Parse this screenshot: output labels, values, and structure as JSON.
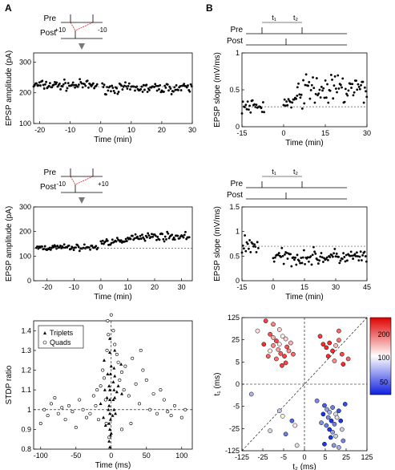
{
  "panel_labels": {
    "a": "A",
    "b": "B"
  },
  "chart_data": [
    {
      "id": "A1",
      "type": "scatter",
      "ylabel": "EPSP amplitude (pA)",
      "xlabel": "Time (min)",
      "xlim": [
        -22,
        30
      ],
      "ylim": [
        100,
        330
      ],
      "xticks": [
        -20,
        -10,
        0,
        10,
        20,
        30
      ],
      "yticks": [
        100,
        200,
        300
      ],
      "baseline": 220,
      "inset": {
        "pre": "Pre",
        "post": "Post",
        "left_value": "+10",
        "right_value": "-10"
      },
      "segments": [
        {
          "x_range": [
            -22,
            -1
          ],
          "mean": 225,
          "spread": 18
        },
        {
          "x_range": [
            0.5,
            30
          ],
          "mean": 215,
          "spread": 18
        }
      ]
    },
    {
      "id": "A2",
      "type": "scatter",
      "ylabel": "EPSP amplitude (pA)",
      "xlabel": "Time (min)",
      "xlim": [
        -25,
        34
      ],
      "ylim": [
        0,
        300
      ],
      "xticks": [
        -20,
        -10,
        0,
        10,
        20,
        30
      ],
      "yticks": [
        0,
        100,
        200,
        300
      ],
      "baseline": 132,
      "inset": {
        "pre": "Pre",
        "post": "Post",
        "left_value": "-10",
        "right_value": "+10"
      },
      "segments": [
        {
          "x_range": [
            -24,
            -1
          ],
          "mean": 135,
          "spread": 14
        },
        {
          "x_range": [
            0,
            10
          ],
          "mean": 158,
          "spread": 16
        },
        {
          "x_range": [
            10,
            33
          ],
          "mean": 180,
          "spread": 18
        }
      ]
    },
    {
      "id": "A3",
      "type": "scatter",
      "ylabel": "STDP ratio",
      "xlabel": "Time (ms)",
      "xlim": [
        -110,
        115
      ],
      "ylim": [
        0.8,
        1.45
      ],
      "xticks": [
        -100,
        -50,
        0,
        50,
        100
      ],
      "yticks": [
        0.8,
        0.9,
        1.0,
        1.1,
        1.2,
        1.3,
        1.4
      ],
      "reference_y": 1.0,
      "reference_x": 0,
      "legend": [
        "Triplets",
        "Quads"
      ],
      "series": [
        {
          "name": "Triplets",
          "marker": "triangle",
          "points": [
            [
              -2,
              1.36
            ],
            [
              -2,
              1.29
            ],
            [
              0,
              1.22
            ],
            [
              -1,
              1.18
            ],
            [
              -3,
              1.12
            ],
            [
              -2,
              1.1
            ],
            [
              -2,
              1.05
            ],
            [
              -3,
              1.02
            ],
            [
              -2,
              0.98
            ],
            [
              -1,
              0.95
            ],
            [
              -3,
              0.93
            ],
            [
              -2,
              0.9
            ],
            [
              -1,
              0.87
            ],
            [
              -3,
              0.84
            ],
            [
              -2,
              0.81
            ],
            [
              0,
              0.88
            ],
            [
              5,
              1.3
            ],
            [
              4,
              1.21
            ],
            [
              5,
              1.17
            ],
            [
              3,
              1.14
            ],
            [
              4,
              1.1
            ],
            [
              5,
              1.06
            ],
            [
              3,
              1.05
            ],
            [
              4,
              1.0
            ],
            [
              6,
              0.98
            ],
            [
              -10,
              1.25
            ],
            [
              -9,
              1.1
            ],
            [
              -11,
              0.96
            ],
            [
              14,
              1.23
            ],
            [
              15,
              1.08
            ],
            [
              -6,
              1.06
            ],
            [
              8,
              1.09
            ],
            [
              -5,
              1.18
            ],
            [
              10,
              1.12
            ],
            [
              -15,
              1.03
            ],
            [
              -4,
              1.0
            ],
            [
              2,
              0.97
            ],
            [
              -8,
              0.92
            ]
          ]
        },
        {
          "name": "Quads",
          "marker": "circle",
          "points": [
            [
              -100,
              0.93
            ],
            [
              -95,
              1.0
            ],
            [
              -90,
              0.97
            ],
            [
              -85,
              1.03
            ],
            [
              -80,
              1.06
            ],
            [
              -75,
              0.98
            ],
            [
              -70,
              1.01
            ],
            [
              -65,
              0.95
            ],
            [
              -60,
              1.02
            ],
            [
              -55,
              0.99
            ],
            [
              -50,
              0.91
            ],
            [
              -45,
              1.05
            ],
            [
              -40,
              1.0
            ],
            [
              -35,
              0.96
            ],
            [
              -30,
              0.98
            ],
            [
              -25,
              1.07
            ],
            [
              -22,
              1.02
            ],
            [
              -20,
              1.1
            ],
            [
              -18,
              0.95
            ],
            [
              -15,
              1.12
            ],
            [
              -12,
              1.2
            ],
            [
              -10,
              1.16
            ],
            [
              -8,
              1.05
            ],
            [
              -6,
              1.3
            ],
            [
              -5,
              1.45
            ],
            [
              -4,
              1.38
            ],
            [
              -7,
              0.93
            ],
            [
              -3,
              0.86
            ],
            [
              0,
              1.48
            ],
            [
              3,
              1.4
            ],
            [
              5,
              1.33
            ],
            [
              8,
              1.28
            ],
            [
              10,
              1.24
            ],
            [
              12,
              1.15
            ],
            [
              15,
              1.19
            ],
            [
              18,
              1.1
            ],
            [
              20,
              1.22
            ],
            [
              25,
              1.07
            ],
            [
              30,
              1.26
            ],
            [
              35,
              1.13
            ],
            [
              40,
              1.03
            ],
            [
              45,
              1.2
            ],
            [
              50,
              1.15
            ],
            [
              55,
              1.0
            ],
            [
              60,
              1.08
            ],
            [
              65,
              0.98
            ],
            [
              70,
              1.1
            ],
            [
              75,
              1.05
            ],
            [
              80,
              0.99
            ],
            [
              85,
              0.97
            ],
            [
              90,
              1.02
            ],
            [
              100,
              0.96
            ],
            [
              105,
              1.0
            ],
            [
              28,
              0.93
            ],
            [
              15,
              0.9
            ],
            [
              42,
              1.3
            ]
          ]
        }
      ]
    },
    {
      "id": "B1",
      "type": "scatter",
      "ylabel": "EPSP slope (mV/ms)",
      "xlabel": "Time (min)",
      "xlim": [
        -15,
        30
      ],
      "ylim": [
        0,
        1.0
      ],
      "xticks": [
        -15,
        0,
        15,
        30
      ],
      "yticks": [
        0,
        0.5,
        1.0
      ],
      "baseline": 0.27,
      "inset": {
        "pre": "Pre",
        "post": "Post",
        "t1": "t₁",
        "t2": "t₂"
      },
      "segments": [
        {
          "x_range": [
            -15,
            -7
          ],
          "mean": 0.27,
          "spread": 0.1
        },
        {
          "x_range": [
            0,
            5
          ],
          "mean": 0.32,
          "spread": 0.15
        },
        {
          "x_range": [
            5,
            30
          ],
          "mean": 0.5,
          "spread": 0.25
        }
      ]
    },
    {
      "id": "B2",
      "type": "scatter",
      "ylabel": "EPSP slope (mV/ms)",
      "xlabel": "Time (min)",
      "xlim": [
        -15,
        45
      ],
      "ylim": [
        0,
        1.5
      ],
      "xticks": [
        -15,
        0,
        15,
        30,
        45
      ],
      "yticks": [
        0,
        0.5,
        1.0,
        1.5
      ],
      "baseline": 0.7,
      "inset": {
        "pre": "Pre",
        "post": "Post",
        "t1": "t₁",
        "t2": "t₂"
      },
      "segments": [
        {
          "x_range": [
            -15,
            -7
          ],
          "mean": 0.72,
          "spread": 0.25
        },
        {
          "x_range": [
            0,
            45
          ],
          "mean": 0.48,
          "spread": 0.18
        }
      ]
    },
    {
      "id": "B3",
      "type": "scatter",
      "ylabel": "t₁ (ms)",
      "xlabel": "t₂ (ms)",
      "xlim": [
        -125,
        125
      ],
      "ylim": [
        -125,
        125
      ],
      "xticks_labels": [
        "-125",
        "-25",
        "-5",
        "0",
        "5",
        "25",
        "125"
      ],
      "yticks_labels": [
        "-125",
        "-25",
        "-5",
        "0",
        "5",
        "25",
        "125"
      ],
      "colorbar": {
        "ticks": [
          "200",
          "100",
          "50"
        ]
      },
      "clusters": [
        {
          "name": "top-left",
          "color_level": 0.75,
          "points": [
            [
              -0.55,
              0.75
            ],
            [
              -0.5,
              0.7
            ],
            [
              -0.45,
              0.65
            ],
            [
              -0.4,
              0.6
            ],
            [
              -0.5,
              0.58
            ],
            [
              -0.35,
              0.72
            ],
            [
              -0.3,
              0.68
            ],
            [
              -0.42,
              0.52
            ],
            [
              -0.38,
              0.46
            ],
            [
              -0.28,
              0.56
            ],
            [
              -0.25,
              0.5
            ],
            [
              -0.32,
              0.42
            ],
            [
              -0.45,
              0.38
            ],
            [
              -0.22,
              0.62
            ],
            [
              -0.58,
              0.42
            ],
            [
              -0.3,
              0.32
            ],
            [
              -0.36,
              0.28
            ],
            [
              -0.5,
              0.9
            ],
            [
              -0.62,
              0.95
            ],
            [
              -0.75,
              0.8
            ],
            [
              -0.55,
              0.5
            ],
            [
              -0.65,
              0.6
            ],
            [
              -0.18,
              0.45
            ],
            [
              -0.4,
              0.82
            ]
          ]
        },
        {
          "name": "top-right",
          "color_level": 0.85,
          "points": [
            [
              0.3,
              0.6
            ],
            [
              0.35,
              0.55
            ],
            [
              0.4,
              0.62
            ],
            [
              0.45,
              0.5
            ],
            [
              0.5,
              0.58
            ],
            [
              0.55,
              0.66
            ],
            [
              0.6,
              0.45
            ],
            [
              0.38,
              0.42
            ],
            [
              0.48,
              0.35
            ],
            [
              0.62,
              0.3
            ],
            [
              0.7,
              0.38
            ],
            [
              0.25,
              0.72
            ],
            [
              0.55,
              0.8
            ]
          ]
        },
        {
          "name": "bottom-right",
          "color_level": 0.2,
          "points": [
            [
              0.32,
              -0.32
            ],
            [
              0.36,
              -0.38
            ],
            [
              0.4,
              -0.42
            ],
            [
              0.45,
              -0.35
            ],
            [
              0.5,
              -0.45
            ],
            [
              0.38,
              -0.5
            ],
            [
              0.43,
              -0.55
            ],
            [
              0.48,
              -0.6
            ],
            [
              0.52,
              -0.5
            ],
            [
              0.55,
              -0.4
            ],
            [
              0.35,
              -0.62
            ],
            [
              0.4,
              -0.68
            ],
            [
              0.45,
              -0.72
            ],
            [
              0.5,
              -0.78
            ],
            [
              0.42,
              -0.8
            ],
            [
              0.58,
              -0.55
            ],
            [
              0.6,
              -0.68
            ],
            [
              0.3,
              -0.45
            ],
            [
              0.27,
              -0.58
            ],
            [
              0.62,
              -0.85
            ],
            [
              0.32,
              -0.9
            ],
            [
              0.47,
              -0.92
            ],
            [
              0.2,
              -0.25
            ],
            [
              0.65,
              -0.3
            ],
            [
              0.55,
              -0.95
            ]
          ]
        },
        {
          "name": "bottom-left",
          "color_level": 0.3,
          "points": [
            [
              -0.4,
              -0.4
            ],
            [
              -0.35,
              -0.48
            ],
            [
              -0.2,
              -0.55
            ],
            [
              -0.15,
              -0.62
            ],
            [
              -0.55,
              -0.7
            ],
            [
              -0.3,
              -0.75
            ],
            [
              -0.85,
              -0.15
            ],
            [
              -0.12,
              -0.92
            ]
          ]
        }
      ]
    }
  ]
}
